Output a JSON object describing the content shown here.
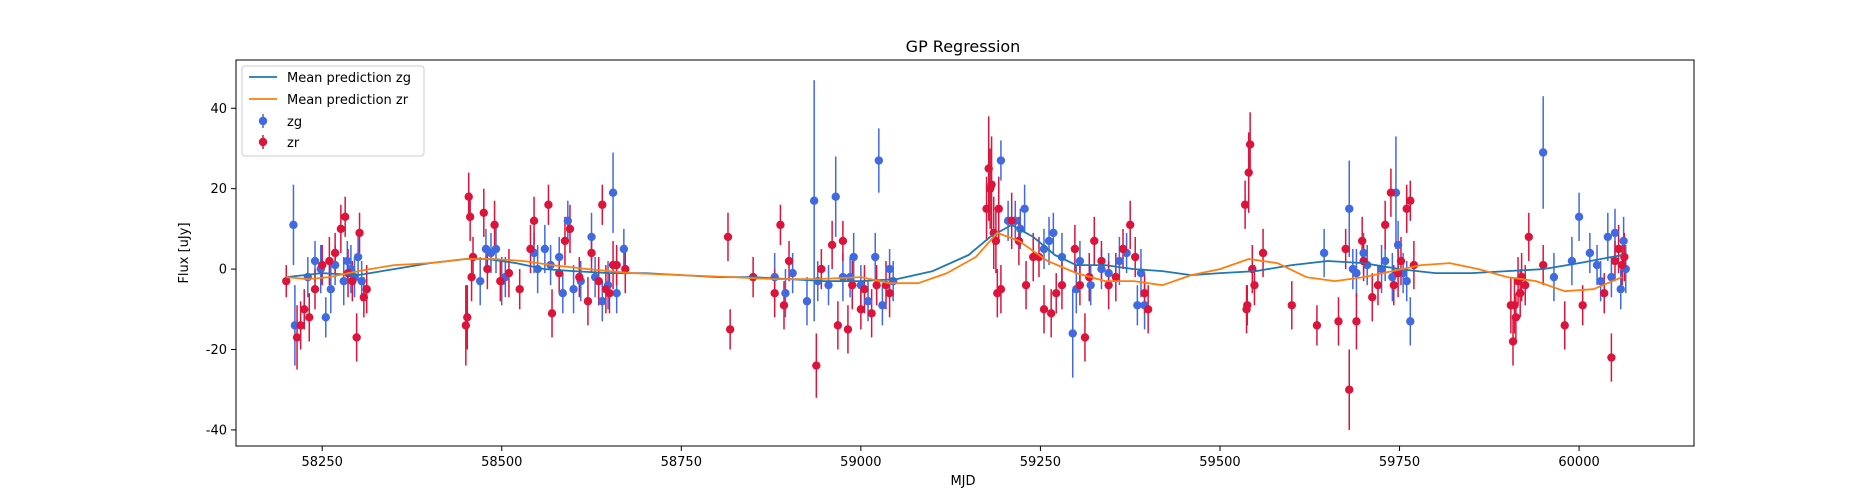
{
  "chart_data": {
    "type": "line",
    "title": "GP Regression",
    "xlabel": "MJD",
    "ylabel": "Flux [uJy]",
    "xlim": [
      58130,
      60160
    ],
    "ylim": [
      -44,
      52
    ],
    "xticks": [
      58250,
      58500,
      58750,
      59000,
      59250,
      59500,
      59750,
      60000
    ],
    "yticks": [
      -40,
      -20,
      0,
      20,
      40
    ],
    "grid": false,
    "legend_position": "top-left",
    "lines": [
      {
        "name": "Mean prediction zg",
        "color": "#1f77b4",
        "x": [
          58200,
          58250,
          58300,
          58350,
          58400,
          58450,
          58480,
          58520,
          58560,
          58600,
          58650,
          58700,
          58750,
          58800,
          58850,
          58900,
          58950,
          59000,
          59050,
          59100,
          59150,
          59180,
          59210,
          59240,
          59270,
          59300,
          59340,
          59380,
          59420,
          59460,
          59500,
          59550,
          59600,
          59650,
          59700,
          59750,
          59800,
          59850,
          59900,
          59950,
          60000,
          60060
        ],
        "y": [
          -2,
          -1,
          -1.5,
          0,
          1.5,
          2.5,
          2.5,
          1.5,
          0,
          -0.5,
          -1,
          -1,
          -1.5,
          -2,
          -2,
          -2.5,
          -3,
          -3,
          -2.5,
          -0.5,
          3.5,
          8,
          11,
          8,
          3.5,
          1,
          1,
          0,
          -0.5,
          -1.5,
          -1,
          -0.5,
          1,
          2,
          1.5,
          0,
          -1,
          -1,
          -0.5,
          0,
          1.5,
          3.5
        ]
      },
      {
        "name": "Mean prediction zr",
        "color": "#ff7f0e",
        "x": [
          58200,
          58230,
          58260,
          58300,
          58350,
          58400,
          58450,
          58490,
          58530,
          58570,
          58620,
          58680,
          58750,
          58820,
          58880,
          58940,
          59000,
          59040,
          59080,
          59120,
          59160,
          59190,
          59220,
          59260,
          59300,
          59340,
          59380,
          59420,
          59460,
          59500,
          59540,
          59580,
          59620,
          59660,
          59700,
          59740,
          59780,
          59820,
          59860,
          59900,
          59940,
          59980,
          60020,
          60060
        ],
        "y": [
          -2,
          -2.5,
          -2,
          -0.5,
          1,
          1.5,
          2.5,
          2.5,
          2,
          1,
          0,
          -1,
          -1.5,
          -2,
          -2.5,
          -2.5,
          -2,
          -3.5,
          -3.5,
          -1,
          3,
          9,
          7,
          2,
          -1,
          -3,
          -3,
          -4,
          -1.5,
          0,
          2.5,
          1.5,
          -2,
          -3,
          -2,
          -0.5,
          1,
          1.5,
          0,
          -2,
          -3,
          -5.5,
          -5,
          -2
        ]
      }
    ],
    "series": [
      {
        "name": "zg",
        "color": "#4169e1",
        "marker": "o",
        "x": [
          58210,
          58212,
          58230,
          58240,
          58248,
          58255,
          58262,
          58268,
          58280,
          58285,
          58290,
          58295,
          58300,
          58305,
          58470,
          58478,
          58485,
          58492,
          58500,
          58505,
          58545,
          58550,
          58560,
          58568,
          58580,
          58585,
          58592,
          58600,
          58610,
          58625,
          58630,
          58640,
          58648,
          58655,
          58660,
          58670,
          58880,
          58895,
          58905,
          58925,
          58935,
          58940,
          58955,
          58965,
          58975,
          58985,
          58990,
          59000,
          59010,
          59020,
          59025,
          59030,
          59040,
          59045,
          59195,
          59205,
          59215,
          59222,
          59228,
          59255,
          59262,
          59268,
          59280,
          59295,
          59300,
          59305,
          59320,
          59335,
          59345,
          59360,
          59370,
          59385,
          59390,
          59395,
          59645,
          59680,
          59685,
          59690,
          59700,
          59705,
          59725,
          59730,
          59740,
          59745,
          59748,
          59755,
          59760,
          59765,
          59950,
          59965,
          59990,
          60000,
          60015,
          60025,
          60030,
          60040,
          60045,
          60050,
          60058,
          60062,
          60065
        ],
        "y": [
          11,
          -14,
          -2,
          2,
          0,
          -12,
          -5,
          1,
          -3,
          2,
          0,
          -2,
          3,
          -3,
          -3,
          5,
          4,
          5,
          -3,
          -2,
          4,
          0,
          5,
          1,
          3,
          -6,
          12,
          -5,
          -3,
          8,
          -2,
          -8,
          -4,
          19,
          -6,
          5,
          -2,
          -6,
          -1,
          -8,
          17,
          -3,
          -4,
          18,
          -2,
          -2,
          3,
          -4,
          -8,
          3,
          27,
          -9,
          0,
          -3,
          27,
          12,
          12,
          10,
          15,
          5,
          7,
          9,
          3,
          -16,
          -5,
          2,
          -4,
          0,
          -1,
          2,
          4,
          -9,
          -1,
          -9,
          4,
          15,
          0,
          -1,
          4,
          1,
          0,
          2,
          -2,
          19,
          6,
          -1,
          -3,
          -13,
          29,
          -2,
          2,
          13,
          4,
          1,
          -3,
          8,
          -2,
          9,
          -5,
          7,
          0
        ],
        "err": [
          10,
          10,
          5,
          5,
          6,
          5,
          6,
          5,
          6,
          5,
          6,
          5,
          6,
          5,
          6,
          5,
          5,
          6,
          6,
          5,
          5,
          6,
          6,
          5,
          5,
          5,
          5,
          6,
          5,
          6,
          5,
          5,
          6,
          10,
          5,
          5,
          6,
          6,
          5,
          6,
          30,
          5,
          5,
          10,
          6,
          5,
          6,
          5,
          5,
          6,
          8,
          5,
          5,
          5,
          5,
          5,
          5,
          5,
          6,
          5,
          6,
          5,
          6,
          11,
          6,
          5,
          5,
          5,
          5,
          6,
          5,
          5,
          6,
          6,
          6,
          12,
          5,
          6,
          5,
          5,
          6,
          5,
          6,
          14,
          6,
          5,
          5,
          6,
          14,
          6,
          6,
          6,
          5,
          5,
          5,
          6,
          5,
          6,
          5,
          6,
          6
        ]
      },
      {
        "name": "zr",
        "color": "#dc143c",
        "marker": "o",
        "x": [
          58200,
          58215,
          58220,
          58225,
          58232,
          58240,
          58250,
          58260,
          58268,
          58276,
          58282,
          58286,
          58292,
          58298,
          58302,
          58308,
          58312,
          58450,
          58452,
          58454,
          58456,
          58458,
          58460,
          58475,
          58480,
          58490,
          58498,
          58510,
          58525,
          58540,
          58545,
          58565,
          58570,
          58580,
          58588,
          58595,
          58608,
          58620,
          58625,
          58635,
          58640,
          58645,
          58650,
          58655,
          58660,
          58672,
          58815,
          58818,
          58850,
          58880,
          58888,
          58893,
          58900,
          58938,
          58945,
          58960,
          58968,
          58975,
          58982,
          58988,
          59000,
          59005,
          59015,
          59022,
          59035,
          59040,
          59175,
          59178,
          59180,
          59182,
          59185,
          59188,
          59190,
          59192,
          59195,
          59210,
          59220,
          59230,
          59240,
          59248,
          59255,
          59265,
          59272,
          59280,
          59298,
          59305,
          59312,
          59318,
          59325,
          59335,
          59345,
          59355,
          59365,
          59375,
          59382,
          59395,
          59400,
          59535,
          59537,
          59538,
          59540,
          59542,
          59545,
          59548,
          59560,
          59600,
          59635,
          59665,
          59675,
          59680,
          59690,
          59698,
          59700,
          59712,
          59720,
          59730,
          59738,
          59742,
          59748,
          59752,
          59760,
          59765,
          59770,
          59905,
          59908,
          59910,
          59912,
          59915,
          59918,
          59920,
          59925,
          59930,
          59950,
          59980,
          60005,
          60035,
          60045,
          60050,
          60055,
          60060,
          60063
        ],
        "y": [
          -3,
          -17,
          -14,
          -10,
          -12,
          -5,
          1,
          2,
          4,
          10,
          13,
          -1,
          -3,
          -17,
          9,
          -7,
          -5,
          -14,
          -12,
          18,
          13,
          -2,
          3,
          14,
          0,
          11,
          -3,
          -1,
          -5,
          5,
          12,
          16,
          -11,
          -1,
          7,
          10,
          -2,
          -8,
          4,
          -3,
          16,
          -5,
          -6,
          1,
          1,
          0,
          8,
          -15,
          -2,
          -6,
          11,
          -9,
          2,
          -24,
          0,
          6,
          -14,
          7,
          -15,
          -4,
          -10,
          -5,
          -11,
          -4,
          -4,
          -6,
          15,
          25,
          20,
          21,
          9,
          7,
          -6,
          15,
          -5,
          12,
          7,
          -4,
          3,
          3,
          -10,
          -11,
          -6,
          -4,
          5,
          -4,
          -17,
          -2,
          7,
          2,
          -4,
          -2,
          5,
          11,
          3,
          -6,
          -10,
          16,
          -10,
          -9,
          24,
          31,
          0,
          -4,
          4,
          -9,
          -14,
          -13,
          5,
          -30,
          -13,
          7,
          2,
          -7,
          -4,
          11,
          19,
          -4,
          -1,
          2,
          15,
          17,
          1,
          -9,
          -18,
          -9,
          -12,
          -3,
          -6,
          -2,
          -4,
          8,
          1,
          -14,
          -9,
          -6,
          -22,
          2,
          5,
          1,
          3
        ],
        "err": [
          4,
          8,
          6,
          5,
          6,
          5,
          5,
          6,
          5,
          6,
          5,
          6,
          5,
          6,
          5,
          5,
          6,
          10,
          8,
          6,
          6,
          6,
          5,
          6,
          5,
          6,
          5,
          6,
          5,
          6,
          6,
          5,
          6,
          5,
          6,
          6,
          5,
          6,
          5,
          6,
          5,
          6,
          5,
          6,
          5,
          6,
          6,
          5,
          5,
          6,
          5,
          6,
          5,
          8,
          5,
          6,
          6,
          5,
          6,
          6,
          5,
          6,
          6,
          5,
          6,
          6,
          8,
          13,
          10,
          12,
          9,
          8,
          6,
          8,
          6,
          7,
          6,
          6,
          6,
          5,
          6,
          6,
          5,
          6,
          6,
          5,
          6,
          6,
          6,
          5,
          6,
          6,
          5,
          6,
          5,
          5,
          6,
          6,
          6,
          5,
          10,
          8,
          6,
          5,
          6,
          6,
          5,
          6,
          5,
          10,
          7,
          6,
          5,
          6,
          5,
          6,
          6,
          5,
          6,
          6,
          6,
          5,
          6,
          7,
          6,
          7,
          6,
          6,
          6,
          6,
          5,
          6,
          5,
          6,
          5,
          5,
          6,
          5,
          6,
          5,
          6
        ]
      }
    ]
  }
}
